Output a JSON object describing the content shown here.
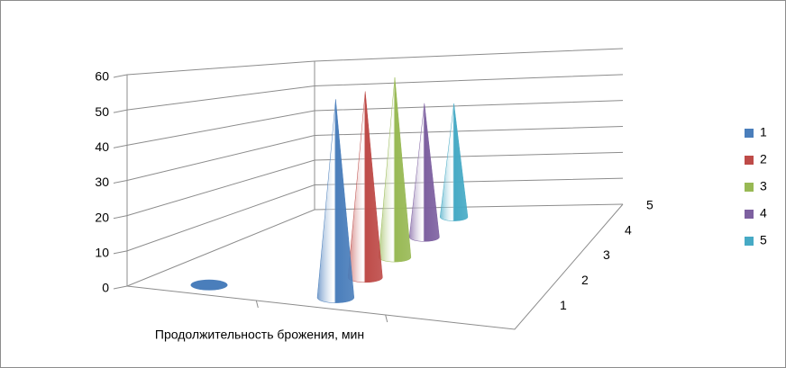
{
  "chart_data": {
    "type": "cone3d",
    "x_label": "Продолжительность брожения, мин",
    "categories": [
      null,
      null,
      null
    ],
    "series": [
      {
        "name": "1",
        "color": "#4a7ebb",
        "values": [
          0,
          58,
          null
        ]
      },
      {
        "name": "2",
        "color": "#be4b48",
        "values": [
          null,
          58,
          null
        ]
      },
      {
        "name": "3",
        "color": "#98b954",
        "values": [
          null,
          60,
          null
        ]
      },
      {
        "name": "4",
        "color": "#7d60a0",
        "values": [
          null,
          48,
          null
        ]
      },
      {
        "name": "5",
        "color": "#46aac5",
        "values": [
          null,
          44,
          null
        ]
      }
    ],
    "ylim": [
      0,
      60
    ],
    "yticks": [
      0,
      10,
      20,
      30,
      40,
      50,
      60
    ],
    "grid": true,
    "legend": "right"
  }
}
